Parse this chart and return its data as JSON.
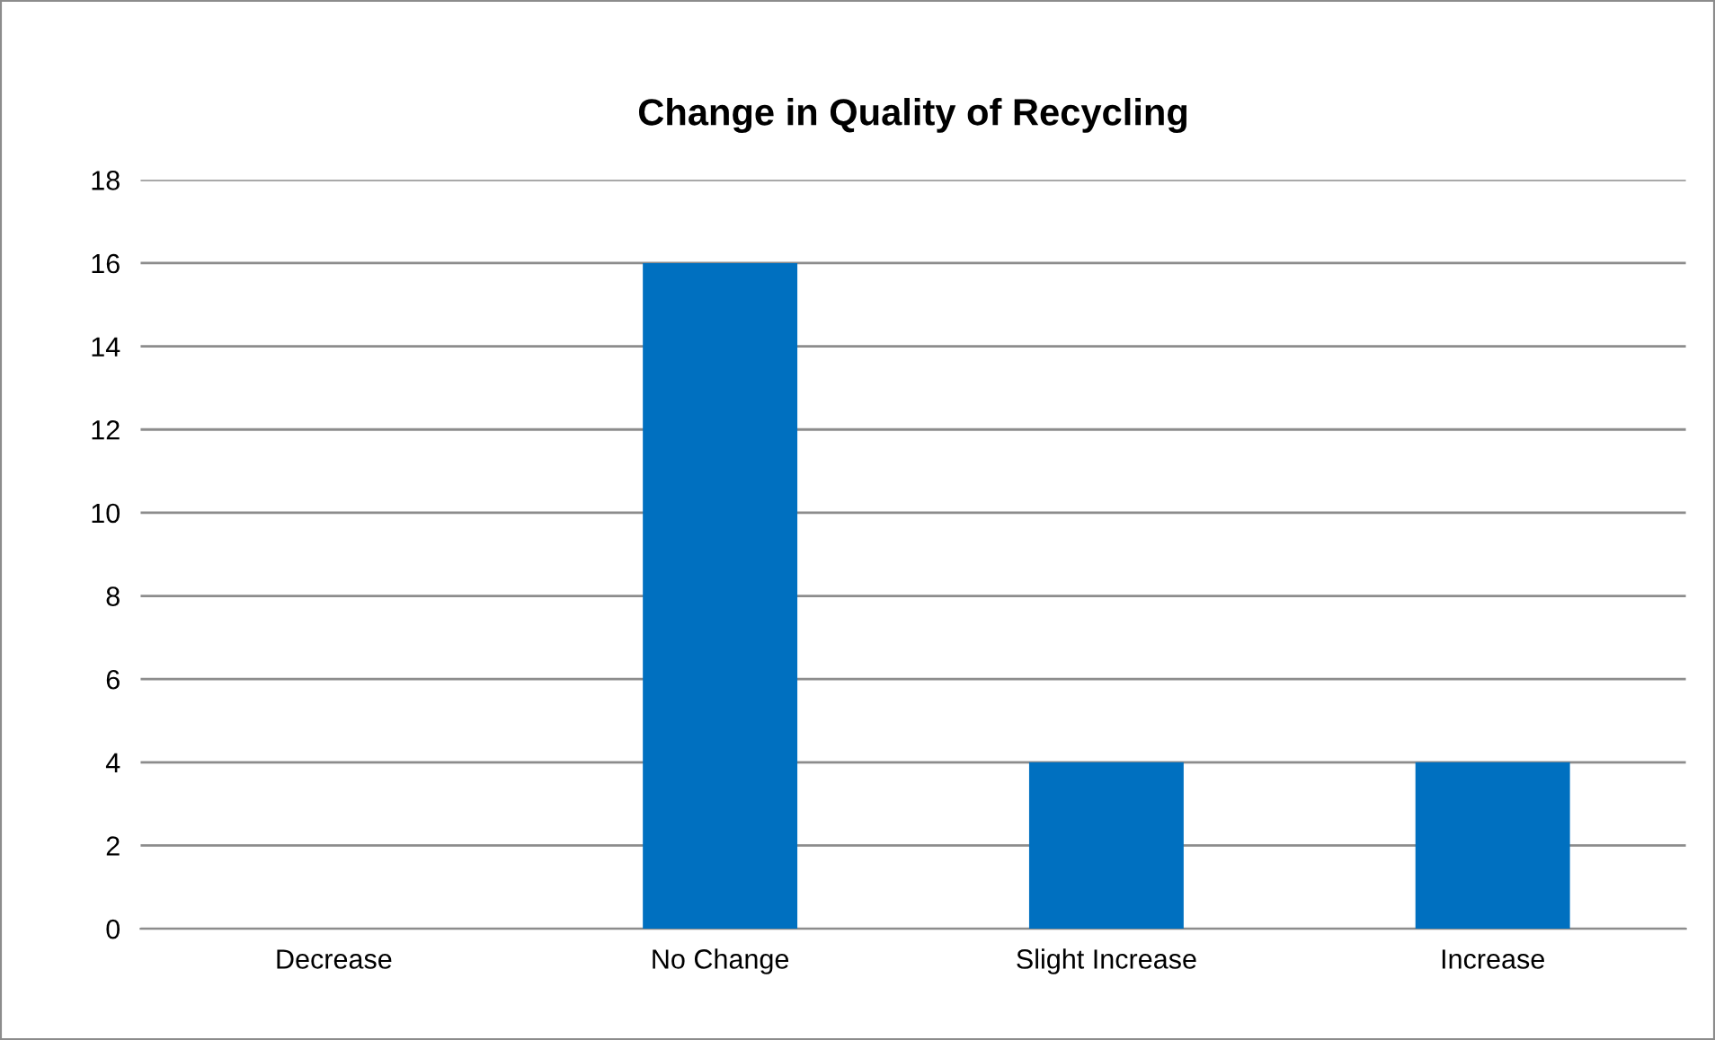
{
  "chart_data": {
    "type": "bar",
    "title": "Change in Quality of Recycling",
    "categories": [
      "Decrease",
      "No Change",
      "Slight Increase",
      "Increase"
    ],
    "values": [
      0,
      16,
      4,
      4
    ],
    "color": "#0070c0",
    "ylim": [
      0,
      18
    ],
    "yticks": [
      0,
      2,
      4,
      6,
      8,
      10,
      12,
      14,
      16,
      18
    ],
    "grid": "y",
    "legend": false
  }
}
